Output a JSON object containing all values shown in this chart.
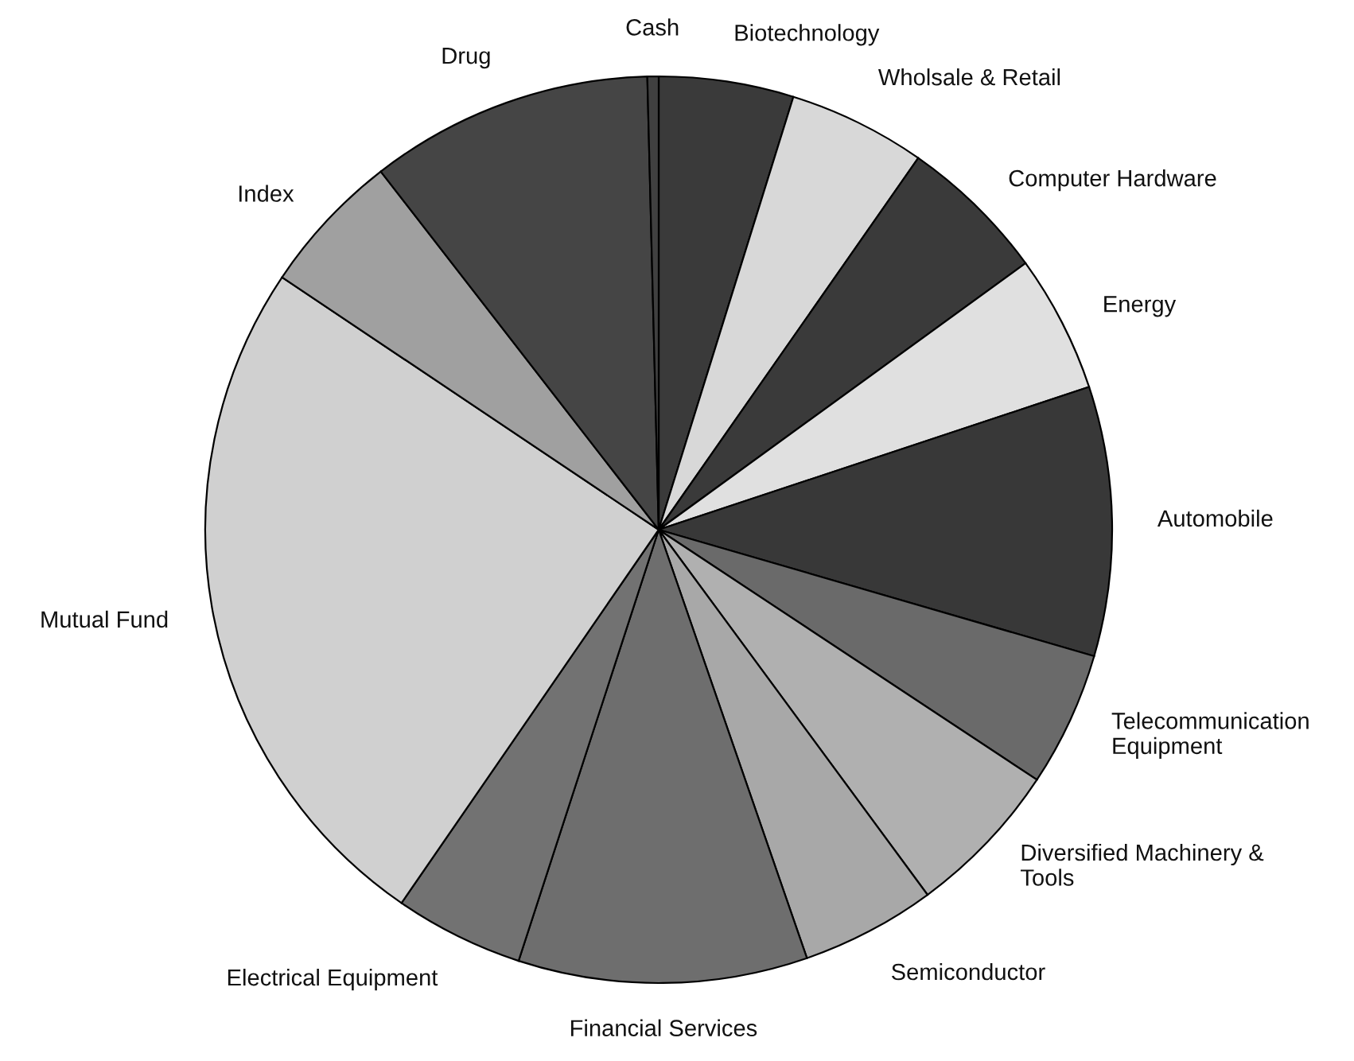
{
  "chart_data": {
    "type": "pie",
    "categories": [
      "Biotechnology",
      "Wholsale & Retail",
      "Computer Hardware",
      "Energy",
      "Automobile",
      "Telecommunication\nEquipment",
      "Diversified Machinery &\nTools",
      "Semiconductor",
      "Financial Services",
      "Electrical Equipment",
      "Mutual Fund",
      "Index",
      "Drug",
      "Cash"
    ],
    "values": [
      4.8,
      4.9,
      5.3,
      4.9,
      9.6,
      4.8,
      5.6,
      4.8,
      10.3,
      4.6,
      24.8,
      5.1,
      10.1,
      0.4
    ],
    "colors": [
      "#3a3a3a",
      "#d8d8d8",
      "#3a3a3a",
      "#e0e0e0",
      "#383838",
      "#6a6a6a",
      "#b0b0b0",
      "#a8a8a8",
      "#6e6e6e",
      "#727272",
      "#d0d0d0",
      "#a0a0a0",
      "#454545",
      "#404040"
    ],
    "legend": false
  }
}
